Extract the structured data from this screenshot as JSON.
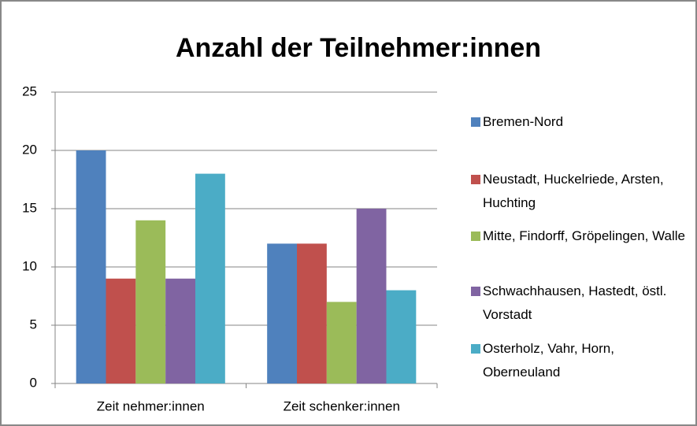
{
  "chart_data": {
    "type": "bar",
    "title": "Anzahl der Teilnehmer:innen",
    "categories": [
      "Zeit nehmer:innen",
      "Zeit schenker:innen"
    ],
    "series": [
      {
        "name": "Bremen-Nord",
        "color": "#4f81bd",
        "values": [
          20,
          12
        ]
      },
      {
        "name": "Neustadt, Huckelriede, Arsten, Huchting",
        "color": "#c0504d",
        "values": [
          9,
          12
        ]
      },
      {
        "name": "Mitte, Findorff, Gröpelingen, Walle",
        "color": "#9bbb59",
        "values": [
          14,
          7
        ]
      },
      {
        "name": "Schwachhausen, Hastedt, östl. Vorstadt",
        "color": "#8064a2",
        "values": [
          9,
          15
        ]
      },
      {
        "name": "Osterholz, Vahr, Horn, Oberneuland",
        "color": "#4bacc6",
        "values": [
          18,
          8
        ]
      }
    ],
    "ylim": [
      0,
      25
    ],
    "yticks": [
      0,
      5,
      10,
      15,
      20,
      25
    ],
    "grid": true,
    "legend": "right"
  }
}
